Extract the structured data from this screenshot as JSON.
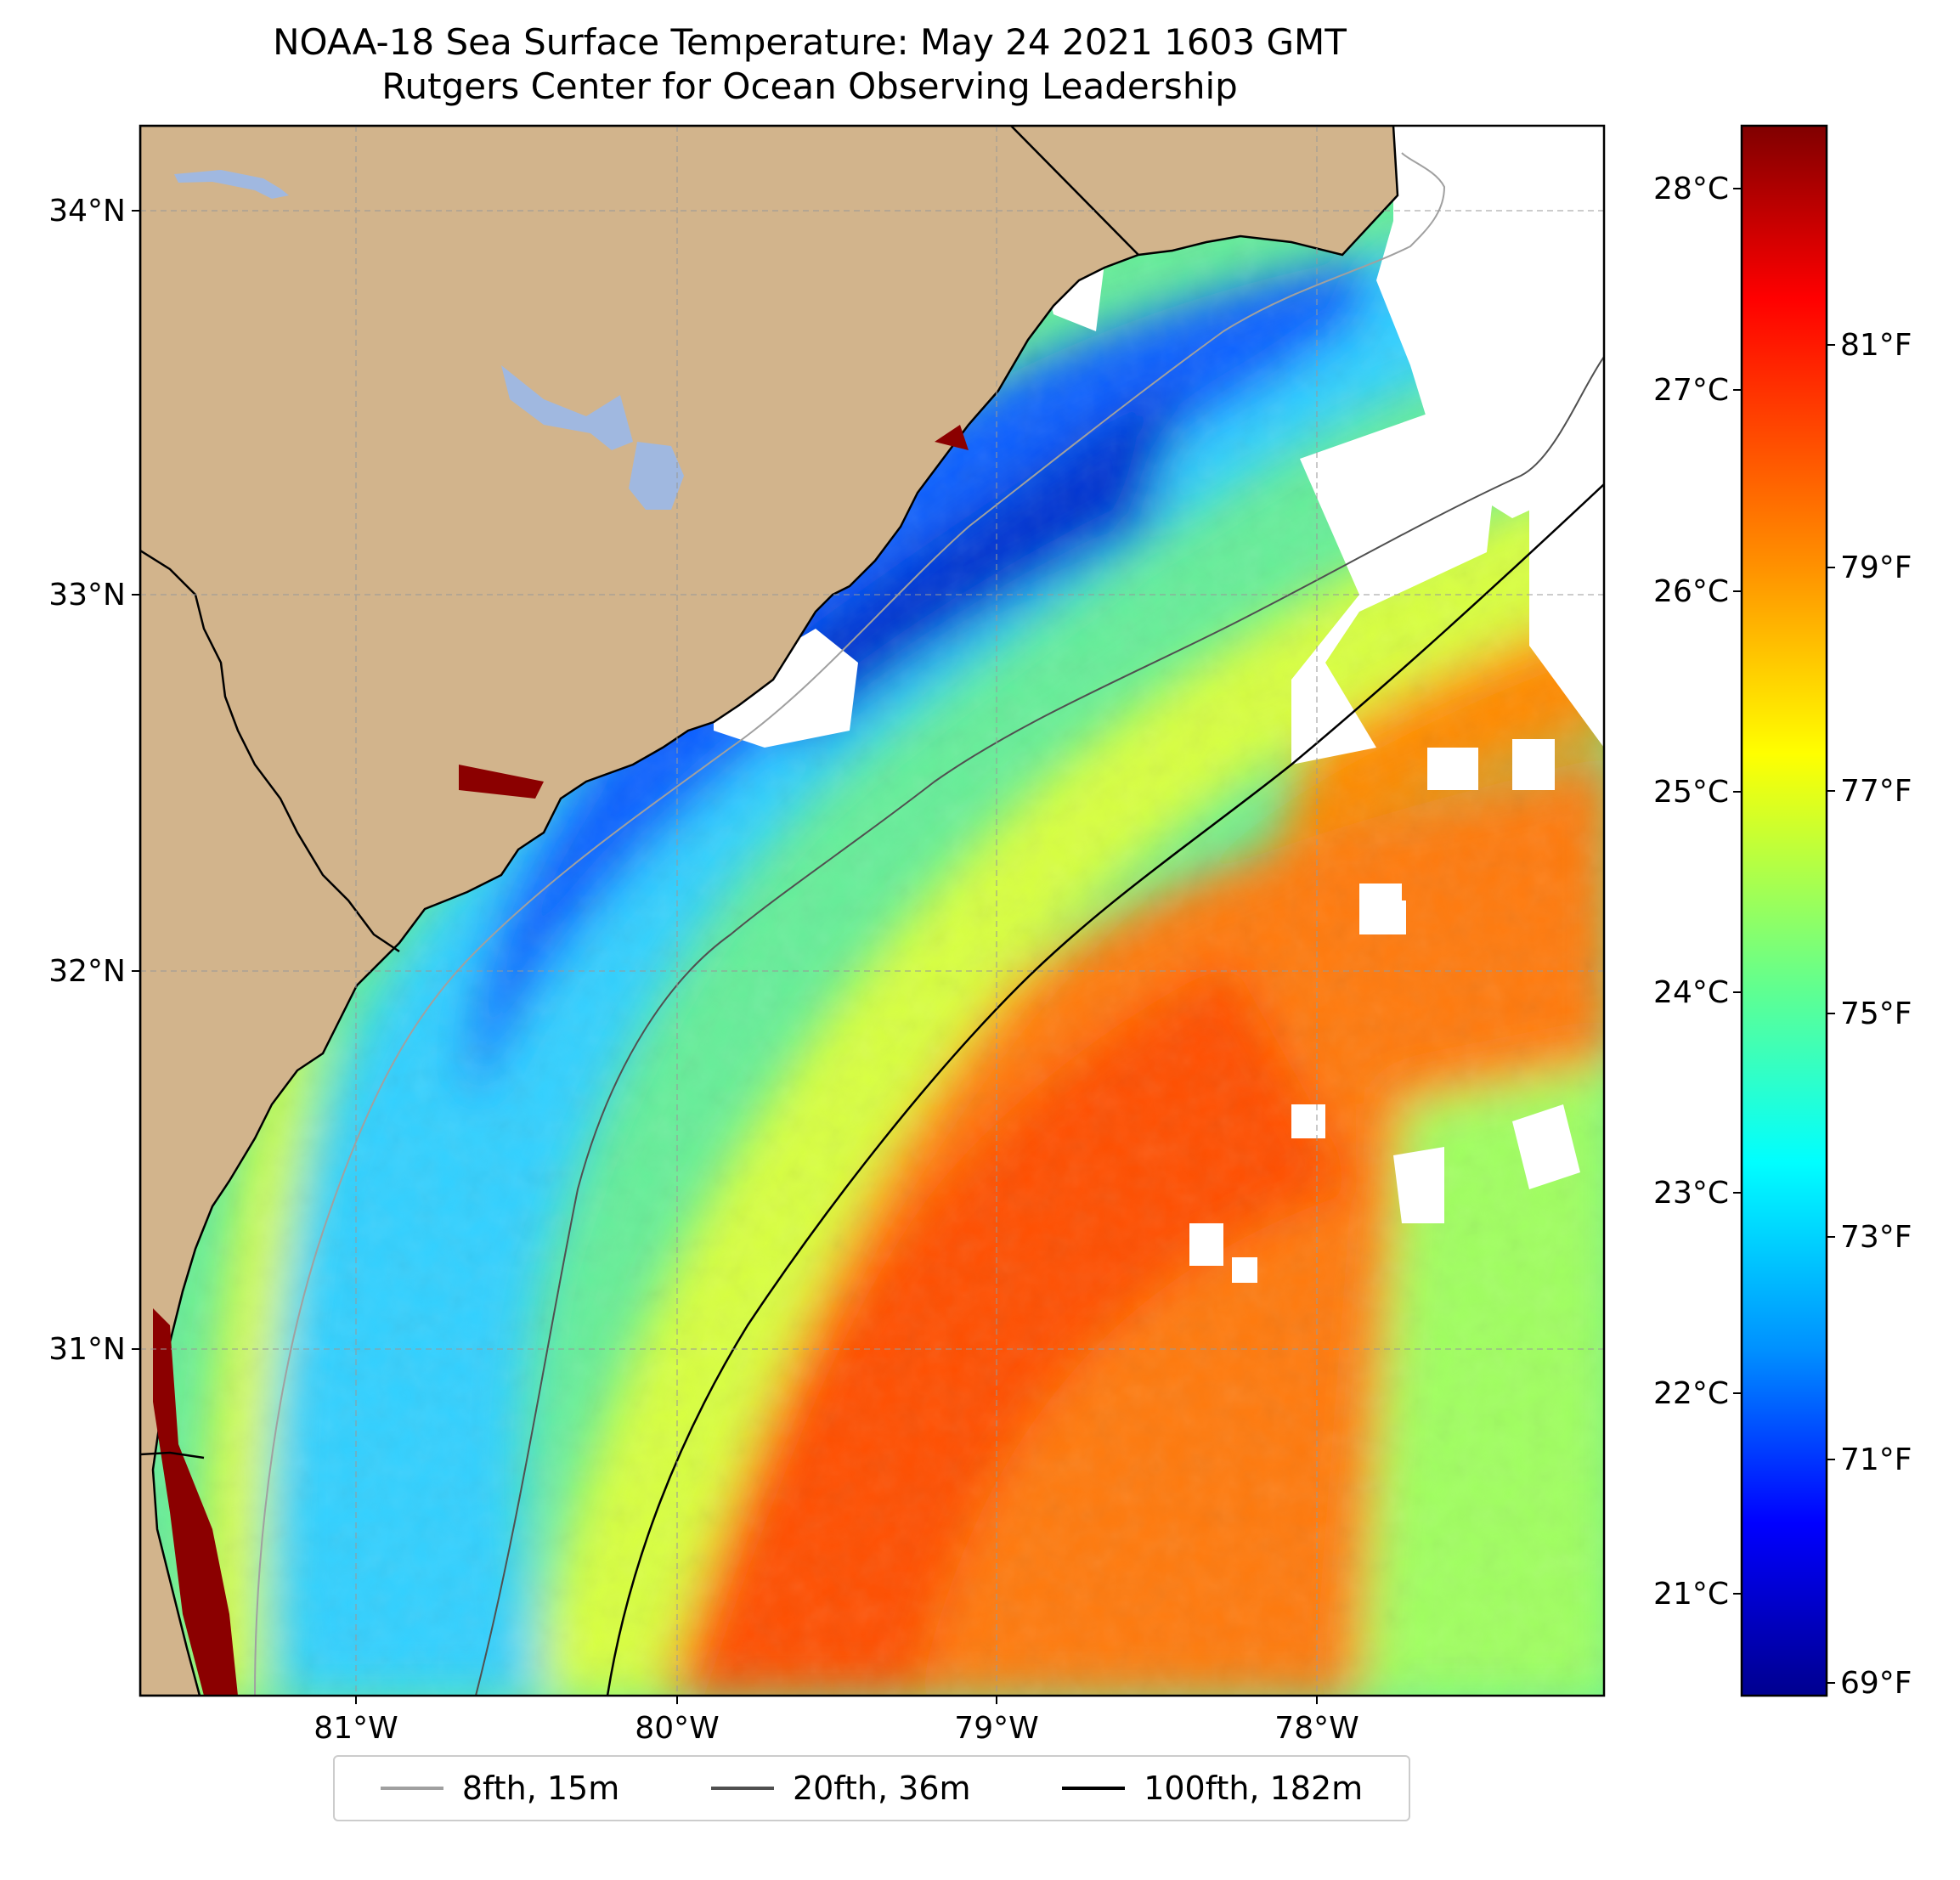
{
  "title": {
    "line1": "NOAA-18 Sea Surface Temperature: May 24 2021 1603 GMT",
    "line2": "Rutgers Center for Ocean Observing Leadership"
  },
  "map": {
    "lat_ticks": [
      "34°N",
      "33°N",
      "32°N",
      "31°N"
    ],
    "lon_ticks": [
      "81°W",
      "80°W",
      "79°W",
      "78°W"
    ],
    "land_color": "#d2b48c",
    "lake_color": "#a0b8e0"
  },
  "colorbar": {
    "celsius_ticks": [
      "28°C",
      "27°C",
      "26°C",
      "25°C",
      "24°C",
      "23°C",
      "22°C",
      "21°C"
    ],
    "fahrenheit_ticks": [
      "81°F",
      "79°F",
      "77°F",
      "75°F",
      "73°F",
      "71°F",
      "69°F"
    ],
    "colormap": "jet",
    "colormap_stops": [
      "#800000",
      "#ff0000",
      "#ff8000",
      "#ffff00",
      "#80ff80",
      "#00ffff",
      "#0080ff",
      "#0000ff",
      "#00008f"
    ]
  },
  "legend": {
    "items": [
      {
        "label": "8fth, 15m",
        "color": "#a0a0a0"
      },
      {
        "label": "20fth, 36m",
        "color": "#505050"
      },
      {
        "label": "100fth, 182m",
        "color": "#000000"
      }
    ]
  }
}
